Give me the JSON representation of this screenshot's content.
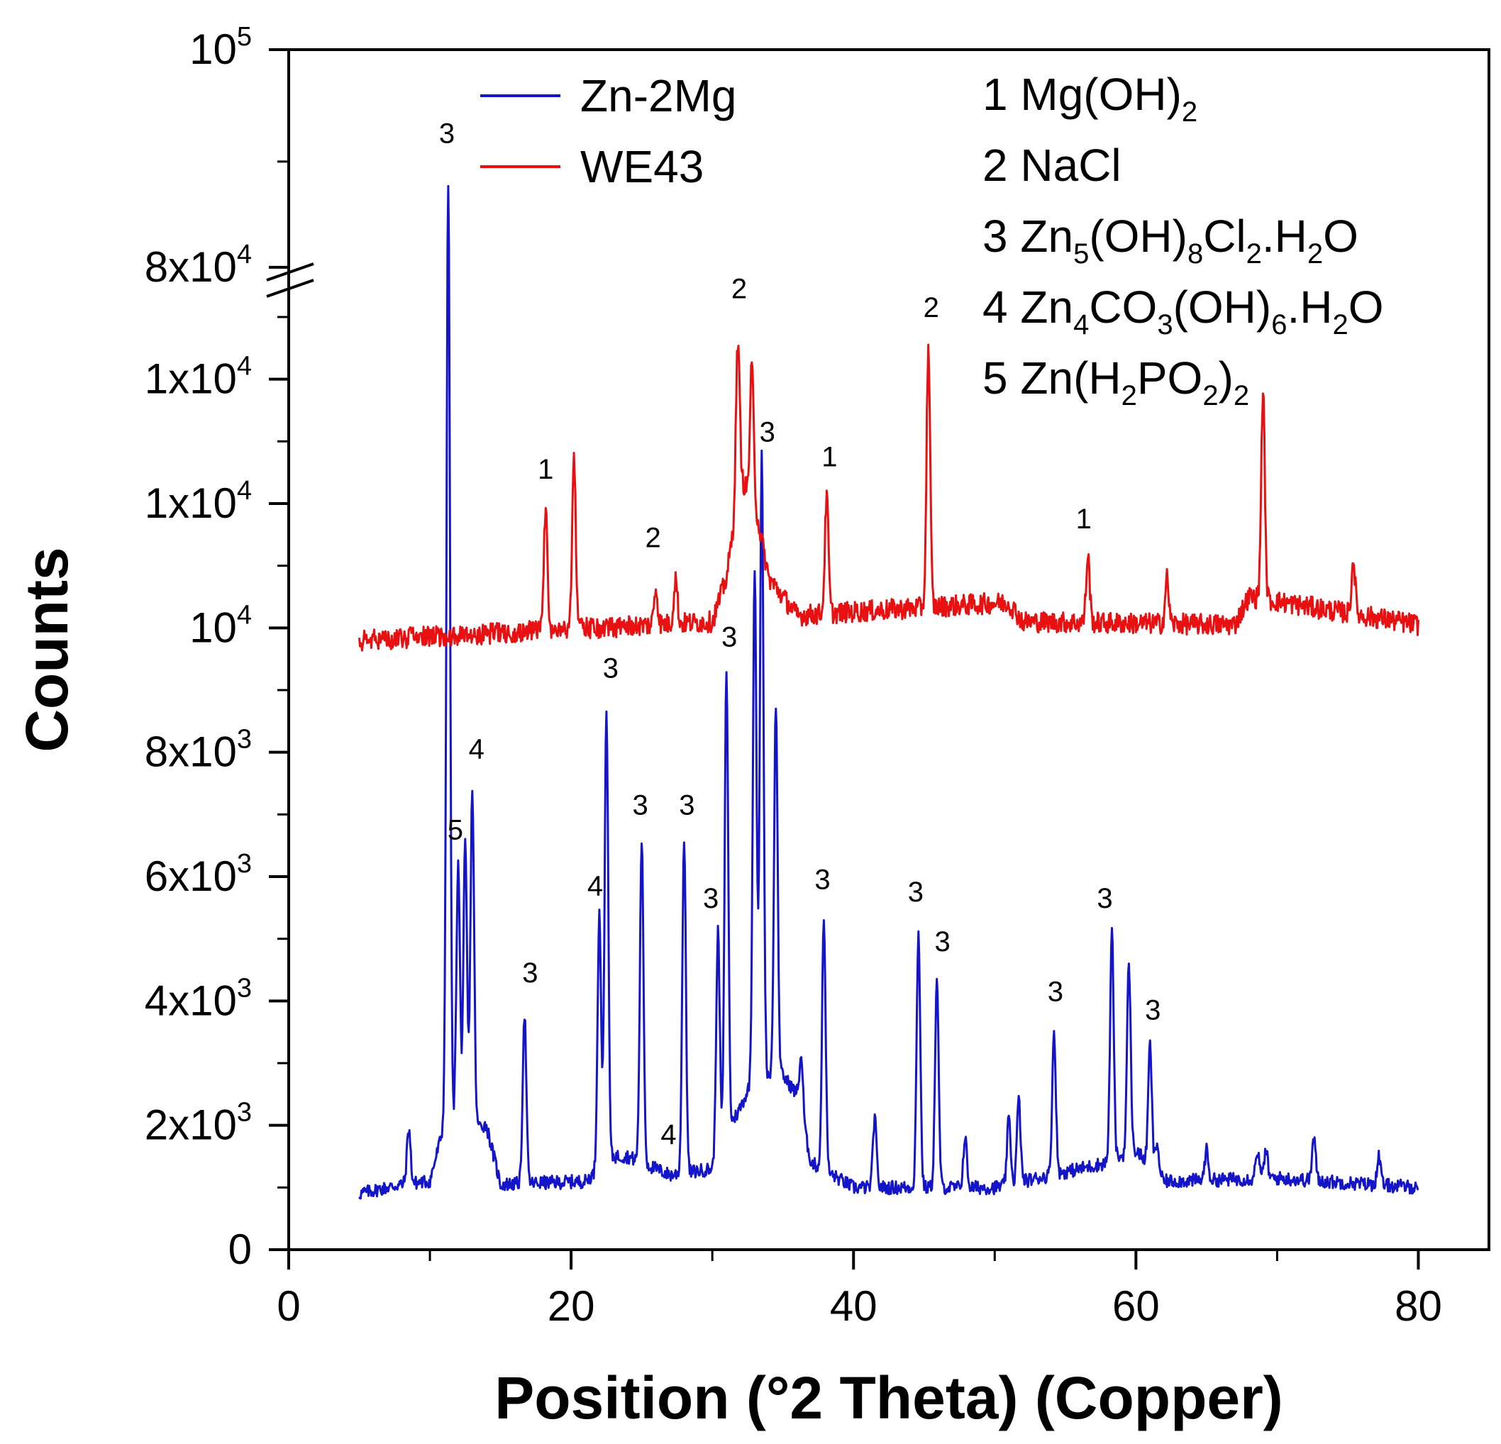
{
  "chart_data": {
    "type": "line",
    "xlabel": "Position (°2 Theta) (Copper)",
    "ylabel": "Counts",
    "xlim": [
      0,
      85
    ],
    "x_ticks": [
      "0",
      "20",
      "40",
      "60",
      "80"
    ],
    "x_tick_values": [
      0,
      20,
      40,
      60,
      80
    ],
    "y_axis_note": "broken axis; displayed tick labels as printed",
    "y_ticks": [
      {
        "base": "0",
        "exp": "",
        "pos": 0
      },
      {
        "base": "2x10",
        "exp": "3",
        "pos": 2000
      },
      {
        "base": "4x10",
        "exp": "3",
        "pos": 4000
      },
      {
        "base": "6x10",
        "exp": "3",
        "pos": 6000
      },
      {
        "base": "8x10",
        "exp": "3",
        "pos": 8000
      },
      {
        "base": "10",
        "exp": "4",
        "pos": 10000
      },
      {
        "base": "1x10",
        "exp": "4",
        "pos": 12000
      },
      {
        "base": "1x10",
        "exp": "4",
        "pos": 14000
      },
      {
        "base": "8x10",
        "exp": "4",
        "pos": 15800
      },
      {
        "base": "10",
        "exp": "5",
        "pos": 19300
      }
    ],
    "ylim": [
      0,
      19300
    ],
    "series": [
      {
        "name": "Zn-2Mg",
        "color": "#1414c8",
        "baseline": 1000,
        "baseline_points": [
          [
            5,
            900
          ],
          [
            8,
            1050
          ],
          [
            10,
            1100
          ],
          [
            11,
            2000
          ],
          [
            14,
            2000
          ],
          [
            15,
            1050
          ],
          [
            21,
            1100
          ],
          [
            23,
            1500
          ],
          [
            24,
            1500
          ],
          [
            27,
            1200
          ],
          [
            30,
            1300
          ],
          [
            33,
            2800
          ],
          [
            35,
            2800
          ],
          [
            36,
            2500
          ],
          [
            37,
            1400
          ],
          [
            40,
            1000
          ],
          [
            50,
            1000
          ],
          [
            58,
            1400
          ],
          [
            60,
            1600
          ],
          [
            62,
            1100
          ],
          [
            70,
            1150
          ],
          [
            80,
            1000
          ]
        ],
        "peaks": [
          [
            8.5,
            1950
          ],
          [
            11.3,
            17200
          ],
          [
            12.0,
            6200
          ],
          [
            12.5,
            6500
          ],
          [
            13.0,
            7400
          ],
          [
            16.7,
            3800
          ],
          [
            22.0,
            5400
          ],
          [
            22.5,
            8700
          ],
          [
            25.0,
            6600
          ],
          [
            28.0,
            6600
          ],
          [
            30.4,
            5100
          ],
          [
            31.0,
            9300
          ],
          [
            31.5,
            2100
          ],
          [
            33.0,
            11000
          ],
          [
            33.5,
            12800
          ],
          [
            34.5,
            8800
          ],
          [
            36.3,
            3100
          ],
          [
            37.9,
            5300
          ],
          [
            41.5,
            2100
          ],
          [
            44.6,
            5100
          ],
          [
            45.9,
            4300
          ],
          [
            47.9,
            1800
          ],
          [
            51.0,
            2100
          ],
          [
            51.7,
            2400
          ],
          [
            54.2,
            3500
          ],
          [
            58.3,
            5100
          ],
          [
            59.5,
            4600
          ],
          [
            61.0,
            3300
          ],
          [
            61.5,
            1700
          ],
          [
            65.0,
            1600
          ],
          [
            68.6,
            1600
          ],
          [
            69.2,
            1600
          ],
          [
            72.6,
            1800
          ],
          [
            77.2,
            1500
          ]
        ]
      },
      {
        "name": "WE43",
        "color": "#e81010",
        "baseline": 10050,
        "baseline_points": [
          [
            5,
            9800
          ],
          [
            30,
            10100
          ],
          [
            31,
            10800
          ],
          [
            32,
            12400
          ],
          [
            33,
            12000
          ],
          [
            34,
            10800
          ],
          [
            36,
            10200
          ],
          [
            50,
            10400
          ],
          [
            51,
            10400
          ],
          [
            52,
            10100
          ],
          [
            67,
            10050
          ],
          [
            68,
            10500
          ],
          [
            80,
            10050
          ]
        ],
        "peaks": [
          [
            18.2,
            11950
          ],
          [
            20.2,
            12800
          ],
          [
            26.0,
            10650
          ],
          [
            27.4,
            10800
          ],
          [
            31.8,
            14600
          ],
          [
            32.8,
            14200
          ],
          [
            38.1,
            12100
          ],
          [
            45.3,
            14500
          ],
          [
            56.6,
            11150
          ],
          [
            62.2,
            10800
          ],
          [
            69.0,
            13800
          ],
          [
            75.4,
            11100
          ]
        ]
      }
    ],
    "peak_labels": [
      {
        "text": "3",
        "x": 11.2,
        "y": 17800
      },
      {
        "text": "5",
        "x": 11.8,
        "y": 6600
      },
      {
        "text": "4",
        "x": 13.3,
        "y": 7900
      },
      {
        "text": "3",
        "x": 17.1,
        "y": 4300
      },
      {
        "text": "4",
        "x": 21.7,
        "y": 5700
      },
      {
        "text": "3",
        "x": 22.8,
        "y": 9200
      },
      {
        "text": "3",
        "x": 24.9,
        "y": 7000
      },
      {
        "text": "3",
        "x": 28.2,
        "y": 7000
      },
      {
        "text": "4",
        "x": 26.9,
        "y": 1700
      },
      {
        "text": "3",
        "x": 29.9,
        "y": 5500
      },
      {
        "text": "3",
        "x": 31.2,
        "y": 9700
      },
      {
        "text": "3",
        "x": 33.9,
        "y": 13000
      },
      {
        "text": "3",
        "x": 37.8,
        "y": 5800
      },
      {
        "text": "3",
        "x": 44.4,
        "y": 5600
      },
      {
        "text": "3",
        "x": 46.3,
        "y": 4800
      },
      {
        "text": "3",
        "x": 54.3,
        "y": 4000
      },
      {
        "text": "3",
        "x": 57.8,
        "y": 5500
      },
      {
        "text": "3",
        "x": 61.2,
        "y": 3700
      },
      {
        "text": "1",
        "x": 18.2,
        "y": 12400
      },
      {
        "text": "2",
        "x": 25.8,
        "y": 11300
      },
      {
        "text": "2",
        "x": 31.9,
        "y": 15300
      },
      {
        "text": "1",
        "x": 38.3,
        "y": 12600
      },
      {
        "text": "2",
        "x": 45.5,
        "y": 15000
      },
      {
        "text": "1",
        "x": 56.3,
        "y": 11600
      }
    ],
    "legend": [
      {
        "label": "Zn-2Mg",
        "color": "#1414c8"
      },
      {
        "label": "WE43",
        "color": "#e81010"
      }
    ],
    "phase_key": [
      {
        "num": "1",
        "parts": [
          [
            "t",
            "Mg(OH)"
          ],
          [
            "s",
            "2"
          ]
        ]
      },
      {
        "num": "2",
        "parts": [
          [
            "t",
            "NaCl"
          ]
        ]
      },
      {
        "num": "3",
        "parts": [
          [
            "t",
            "Zn"
          ],
          [
            "s",
            "5"
          ],
          [
            "t",
            "(OH)"
          ],
          [
            "s",
            "8"
          ],
          [
            "t",
            "Cl"
          ],
          [
            "s",
            "2"
          ],
          [
            "t",
            ".H"
          ],
          [
            "s",
            "2"
          ],
          [
            "t",
            "O"
          ]
        ]
      },
      {
        "num": "4",
        "parts": [
          [
            "t",
            "Zn"
          ],
          [
            "s",
            "4"
          ],
          [
            "t",
            "CO"
          ],
          [
            "s",
            "3"
          ],
          [
            "t",
            "(OH)"
          ],
          [
            "s",
            "6"
          ],
          [
            "t",
            ".H"
          ],
          [
            "s",
            "2"
          ],
          [
            "t",
            "O"
          ]
        ]
      },
      {
        "num": "5",
        "parts": [
          [
            "t",
            "Zn(H"
          ],
          [
            "s",
            "2"
          ],
          [
            "t",
            "PO"
          ],
          [
            "s",
            "2"
          ],
          [
            "t",
            ")"
          ],
          [
            "s",
            "2"
          ]
        ]
      }
    ]
  }
}
